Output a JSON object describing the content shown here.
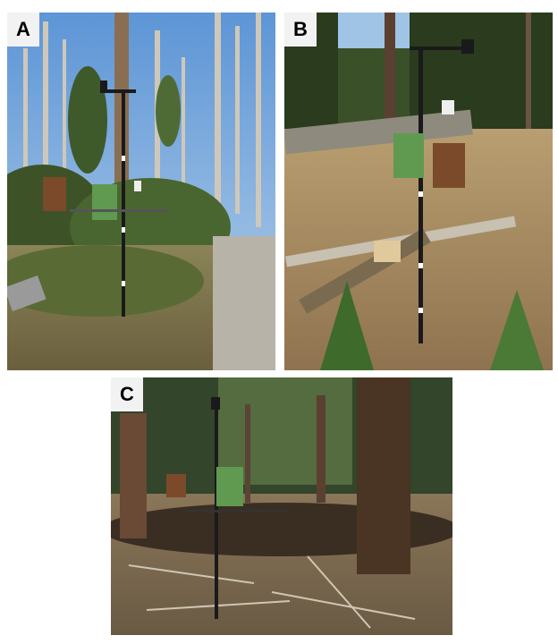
{
  "panels": [
    {
      "label": "A"
    },
    {
      "label": "B"
    },
    {
      "label": "C"
    }
  ],
  "colors": {
    "sky": "#7fb0e0",
    "forest_dark": "#2f3a22",
    "dead_trees": "#c9c2b4",
    "ground_dry": "#a89068",
    "instrument_green": "#5f9a50",
    "rain_gauge_brown": "#7a4a2a"
  }
}
